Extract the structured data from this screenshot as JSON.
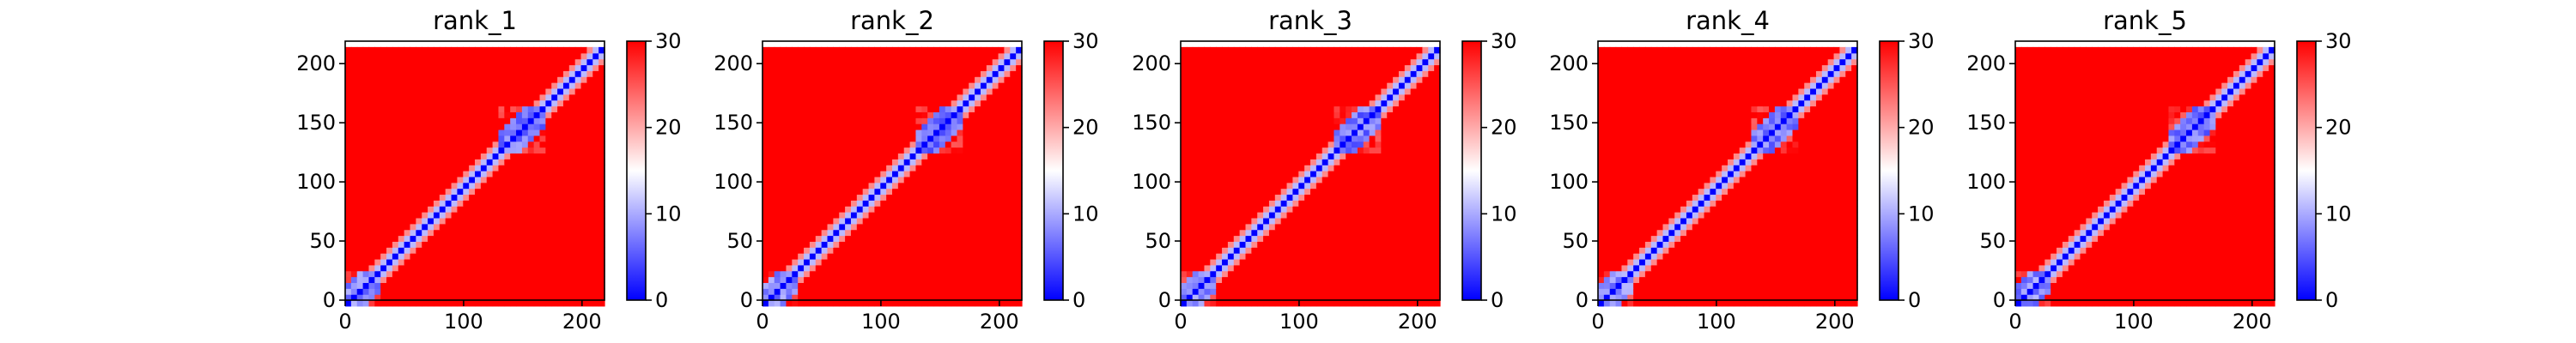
{
  "colors": {
    "low": "#0000ff",
    "mid": "#ffffff",
    "high": "#ff0000",
    "colormap": "bwr"
  },
  "chart_data": [
    {
      "type": "heatmap",
      "title": "rank_1",
      "xlim": [
        0,
        219
      ],
      "ylim": [
        219,
        0
      ],
      "xticks": [
        0,
        100,
        200
      ],
      "yticks": [
        0,
        50,
        100,
        150,
        200
      ],
      "colorbar": {
        "range": [
          0,
          30
        ],
        "ticks": [
          0,
          10,
          20,
          30
        ]
      },
      "blocks": [
        {
          "start": 0,
          "end": 30,
          "value": 5
        },
        {
          "start": 130,
          "end": 170,
          "value": 4
        }
      ]
    },
    {
      "type": "heatmap",
      "title": "rank_2",
      "xlim": [
        0,
        219
      ],
      "ylim": [
        219,
        0
      ],
      "xticks": [
        0,
        100,
        200
      ],
      "yticks": [
        0,
        50,
        100,
        150,
        200
      ],
      "colorbar": {
        "range": [
          0,
          30
        ],
        "ticks": [
          0,
          10,
          20,
          30
        ]
      },
      "blocks": [
        {
          "start": 0,
          "end": 30,
          "value": 5
        },
        {
          "start": 130,
          "end": 170,
          "value": 4
        }
      ]
    },
    {
      "type": "heatmap",
      "title": "rank_3",
      "xlim": [
        0,
        219
      ],
      "ylim": [
        219,
        0
      ],
      "xticks": [
        0,
        100,
        200
      ],
      "yticks": [
        0,
        50,
        100,
        150,
        200
      ],
      "colorbar": {
        "range": [
          0,
          30
        ],
        "ticks": [
          0,
          10,
          20,
          30
        ]
      },
      "blocks": [
        {
          "start": 0,
          "end": 30,
          "value": 5
        },
        {
          "start": 130,
          "end": 170,
          "value": 4
        }
      ]
    },
    {
      "type": "heatmap",
      "title": "rank_4",
      "xlim": [
        0,
        219
      ],
      "ylim": [
        219,
        0
      ],
      "xticks": [
        0,
        100,
        200
      ],
      "yticks": [
        0,
        50,
        100,
        150,
        200
      ],
      "colorbar": {
        "range": [
          0,
          30
        ],
        "ticks": [
          0,
          10,
          20,
          30
        ]
      },
      "blocks": [
        {
          "start": 0,
          "end": 30,
          "value": 5
        },
        {
          "start": 130,
          "end": 170,
          "value": 4
        }
      ]
    },
    {
      "type": "heatmap",
      "title": "rank_5",
      "xlim": [
        0,
        219
      ],
      "ylim": [
        219,
        0
      ],
      "xticks": [
        0,
        100,
        200
      ],
      "yticks": [
        0,
        50,
        100,
        150,
        200
      ],
      "colorbar": {
        "range": [
          0,
          30
        ],
        "ticks": [
          0,
          10,
          20,
          30
        ]
      },
      "blocks": [
        {
          "start": 0,
          "end": 30,
          "value": 5
        },
        {
          "start": 130,
          "end": 170,
          "value": 4
        }
      ]
    }
  ]
}
